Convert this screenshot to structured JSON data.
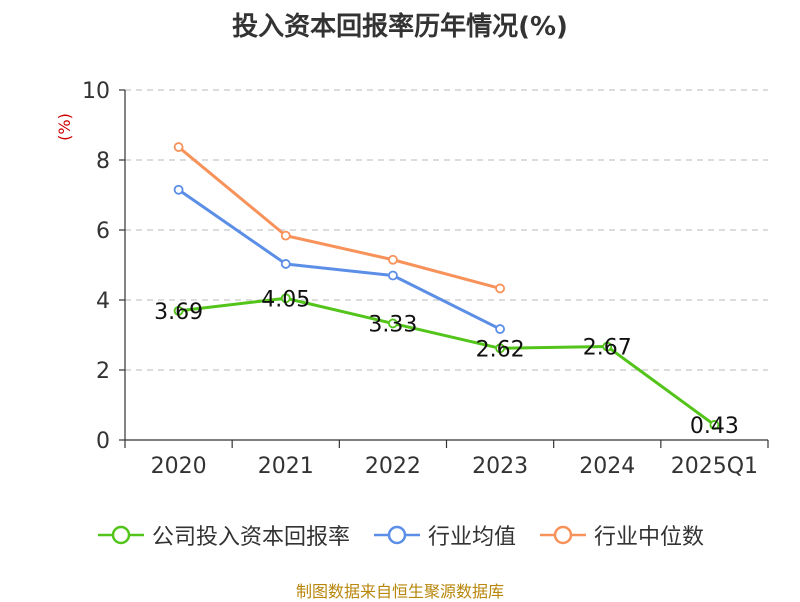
{
  "chart_data": {
    "type": "line",
    "title": "投入资本回报率历年情况(%)",
    "ylabel": "(%)",
    "xlabel": "",
    "categories": [
      "2020",
      "2021",
      "2022",
      "2023",
      "2024",
      "2025Q1"
    ],
    "y_ticks": [
      "0",
      "2",
      "4",
      "6",
      "8",
      "10"
    ],
    "ylim": [
      0,
      10
    ],
    "grid": true,
    "legend_position": "bottom",
    "series": [
      {
        "name": "公司投入资本回报率",
        "color": "#52c41a",
        "values": [
          3.69,
          4.05,
          3.33,
          2.62,
          2.67,
          0.43
        ],
        "labels": [
          "3.69",
          "4.05",
          "3.33",
          "2.62",
          "2.67",
          "0.43"
        ]
      },
      {
        "name": "行业均值",
        "color": "#5b8ee6",
        "values": [
          7.15,
          5.03,
          4.7,
          3.17,
          null,
          null
        ]
      },
      {
        "name": "行业中位数",
        "color": "#f7925a",
        "values": [
          8.37,
          5.84,
          5.15,
          4.33,
          null,
          null
        ]
      }
    ],
    "source": "制图数据来自恒生聚源数据库"
  }
}
